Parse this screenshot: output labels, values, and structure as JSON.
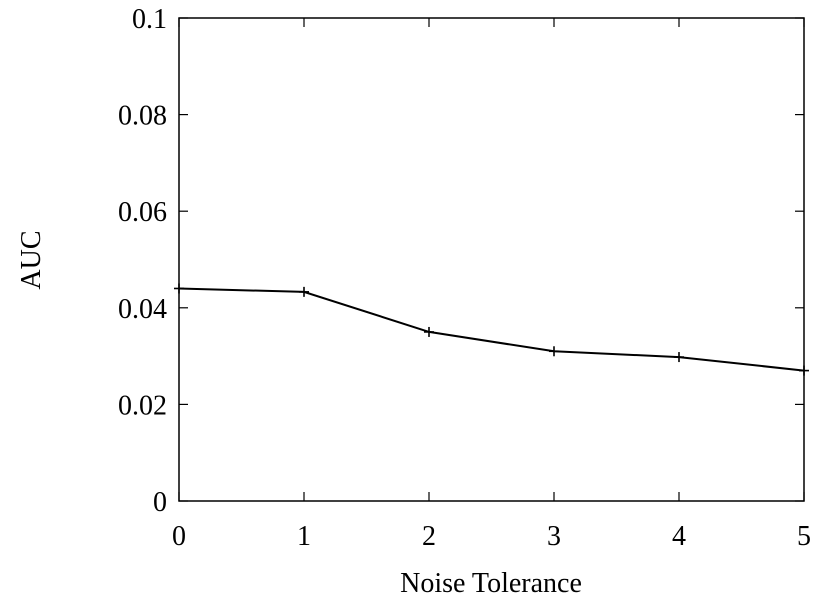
{
  "chart_data": {
    "type": "line",
    "title": "",
    "xlabel": "Noise Tolerance",
    "ylabel": "AUC",
    "x": [
      0,
      1,
      2,
      3,
      4,
      5
    ],
    "series": [
      {
        "values": [
          0.044,
          0.0433,
          0.035,
          0.031,
          0.0298,
          0.027
        ]
      }
    ],
    "xlim": [
      0,
      5
    ],
    "ylim": [
      0,
      0.1
    ],
    "xticks": [
      "0",
      "1",
      "2",
      "3",
      "4",
      "5"
    ],
    "yticks": [
      "0",
      "0.02",
      "0.04",
      "0.06",
      "0.08",
      "0.1"
    ],
    "grid": false,
    "legend": "none",
    "line_color": "#000000",
    "marker": "plus"
  }
}
